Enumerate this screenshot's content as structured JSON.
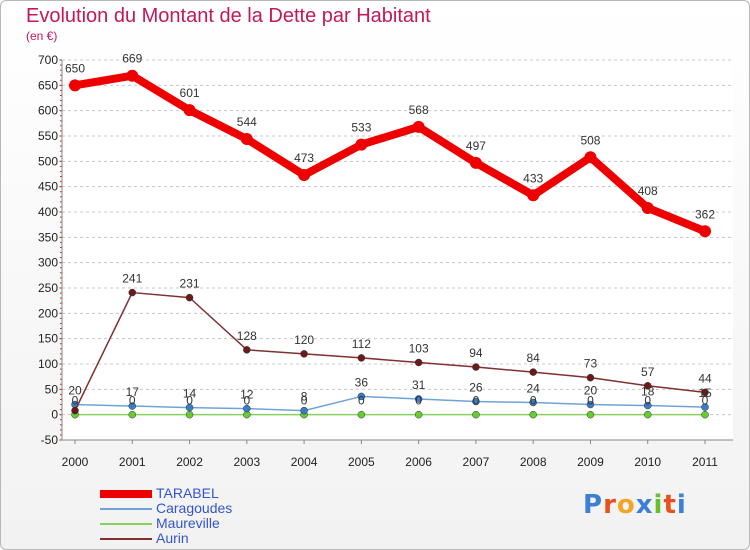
{
  "title": "Evolution du Montant de la Dette par Habitant",
  "subtitle": "(en €)",
  "brand": {
    "letters": [
      "P",
      "r",
      "o",
      "x",
      "i",
      "t",
      "i"
    ],
    "colors": [
      "#3b7fd6",
      "#e8511b",
      "#f4a523",
      "#3b7fd6",
      "#6abf2e",
      "#e8511b",
      "#3b7fd6"
    ]
  },
  "chart_data": {
    "type": "line",
    "title": "Evolution du Montant de la Dette par Habitant",
    "subtitle": "(en €)",
    "xlabel": "",
    "ylabel": "",
    "x": [
      "2000",
      "2001",
      "2002",
      "2003",
      "2004",
      "2005",
      "2006",
      "2007",
      "2008",
      "2009",
      "2010",
      "2011"
    ],
    "ylim": [
      -50,
      700
    ],
    "yticks": [
      -50,
      0,
      50,
      100,
      150,
      200,
      250,
      300,
      350,
      400,
      450,
      500,
      550,
      600,
      650,
      700
    ],
    "grid": "horizontal dashed",
    "legend_position": "bottom-left",
    "series": [
      {
        "name": "TARABEL",
        "color": "#ee0000",
        "marker_color": "#ee0000",
        "values": [
          650,
          669,
          601,
          544,
          473,
          533,
          568,
          497,
          433,
          508,
          408,
          362
        ],
        "labels": [
          "650",
          "669",
          "601",
          "544",
          "473",
          "533",
          "568",
          "497",
          "433",
          "508",
          "408",
          "362"
        ]
      },
      {
        "name": "Caragoudes",
        "color": "#6fa3d8",
        "marker_color": "#3a7cc7",
        "values": [
          20,
          17,
          14,
          12,
          8,
          36,
          31,
          26,
          24,
          20,
          18,
          15
        ],
        "labels": [
          "20",
          "17",
          "14",
          "12",
          "8",
          "36",
          "31",
          "26",
          "24",
          "20",
          "18",
          "15"
        ]
      },
      {
        "name": "Maureville",
        "color": "#88d060",
        "marker_color": "#66cc33",
        "values": [
          0,
          0,
          0,
          0,
          0,
          0,
          0,
          0,
          0,
          0,
          0,
          0
        ],
        "labels": [
          "0",
          "0",
          "0",
          "0",
          "0",
          "0",
          "0",
          "0",
          "0",
          "0",
          "0",
          "0"
        ]
      },
      {
        "name": "Aurin",
        "color": "#803030",
        "marker_color": "#6b1a1a",
        "values": [
          8,
          241,
          231,
          128,
          120,
          112,
          103,
          94,
          84,
          73,
          57,
          44
        ],
        "labels": [
          "",
          "241",
          "231",
          "128",
          "120",
          "112",
          "103",
          "94",
          "84",
          "73",
          "57",
          "44"
        ]
      }
    ]
  }
}
